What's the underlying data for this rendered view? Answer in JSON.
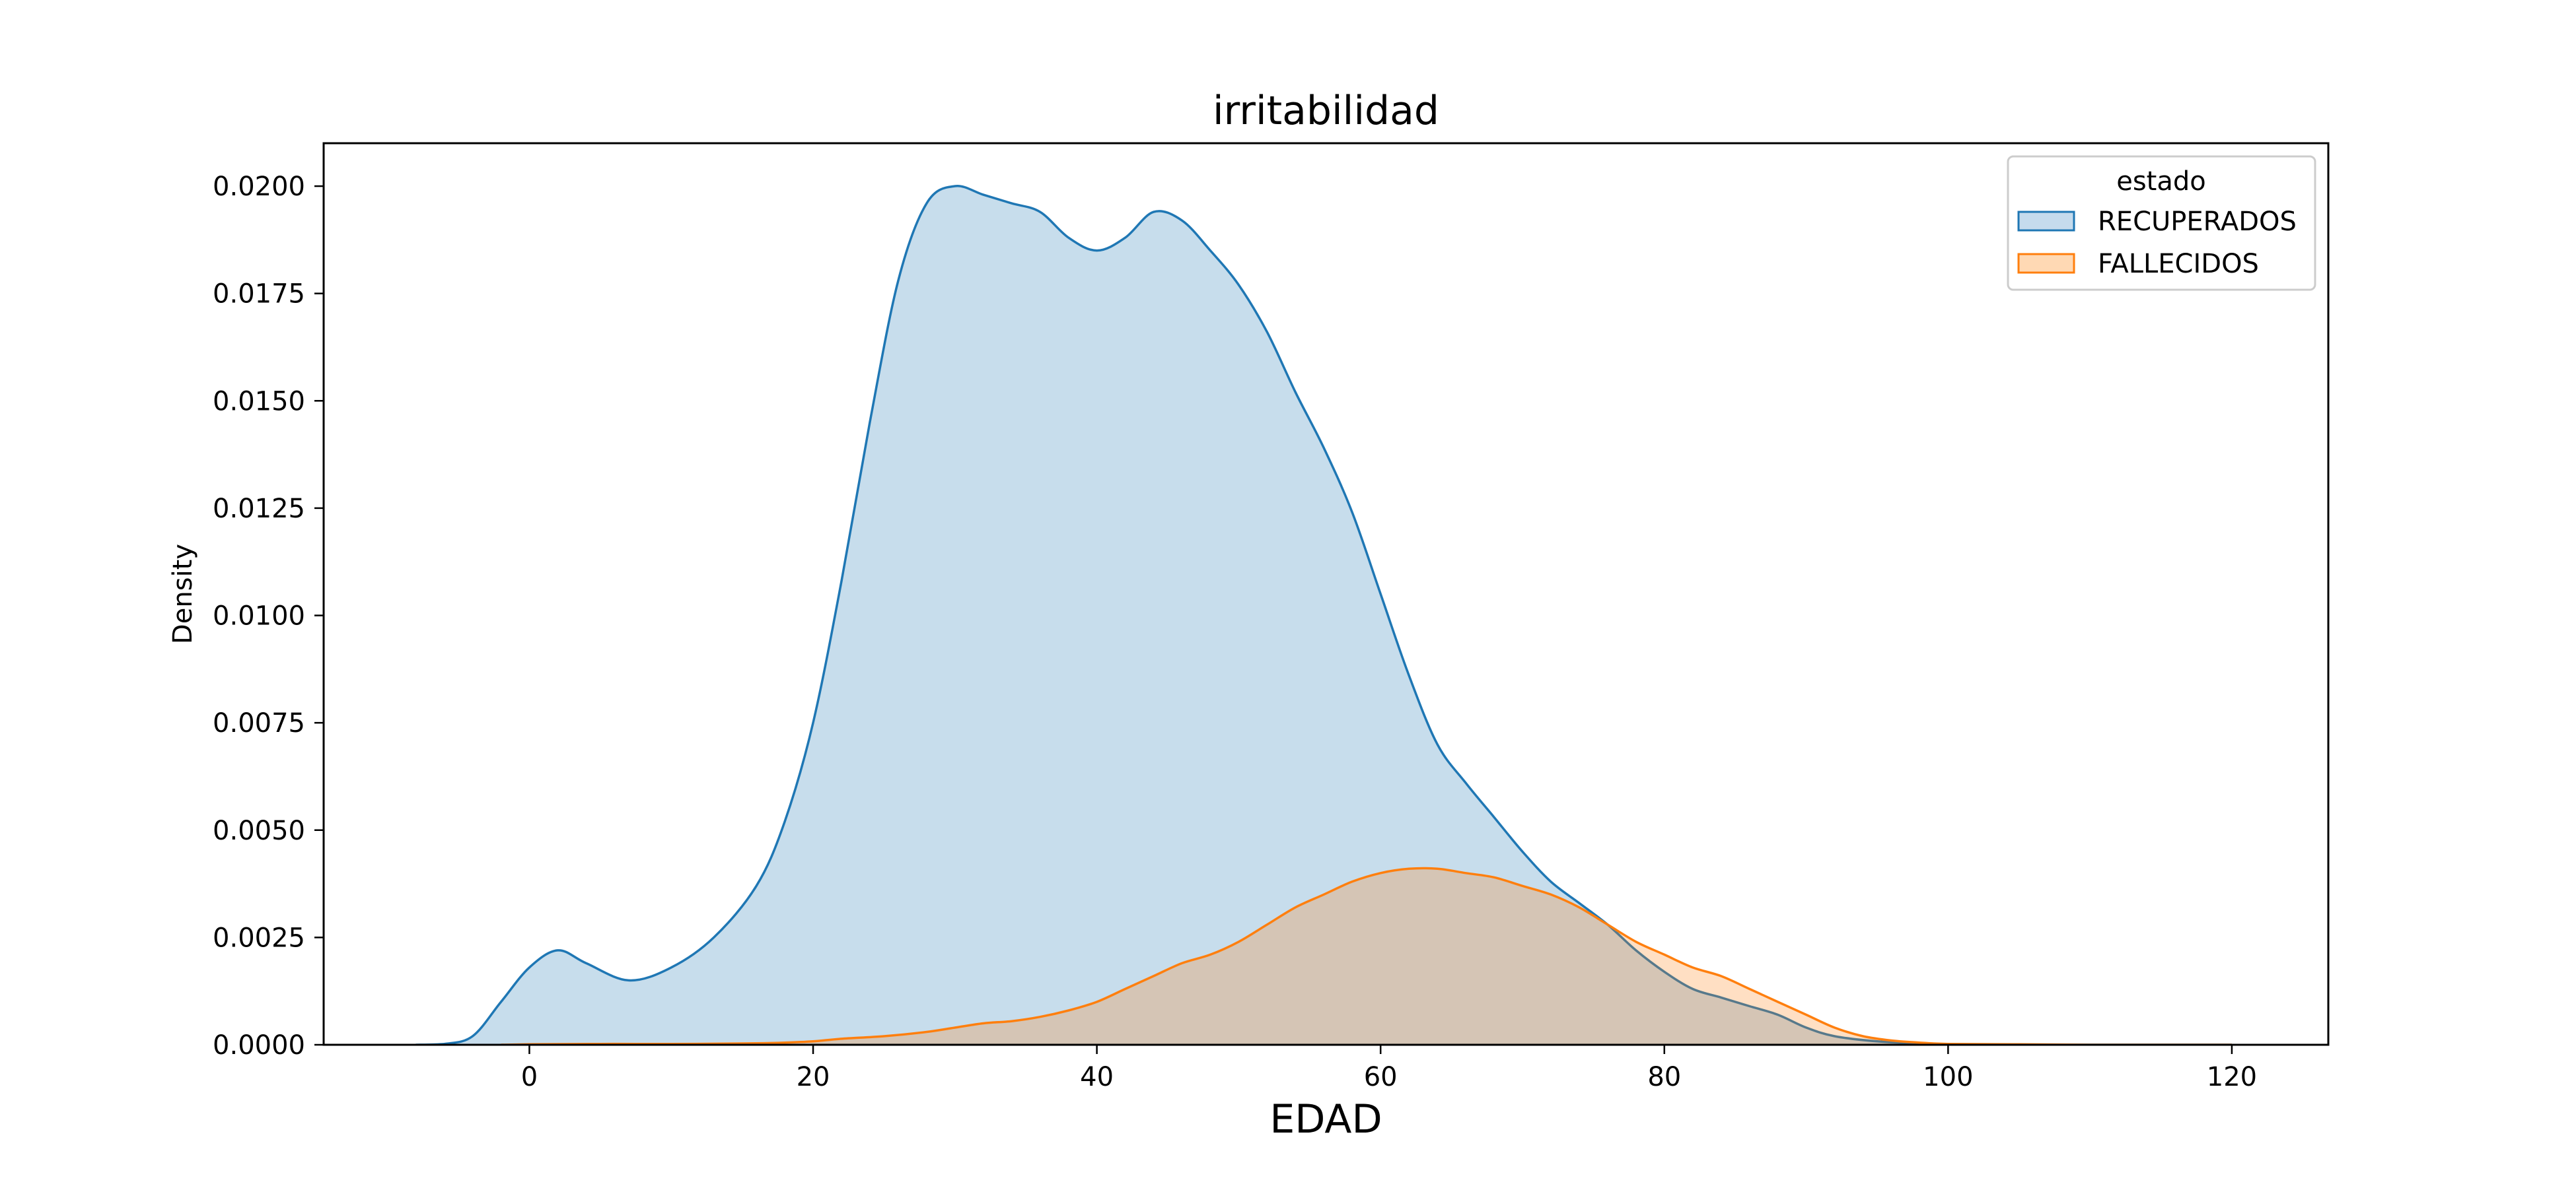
{
  "chart_data": {
    "type": "area",
    "title": "irritabilidad",
    "xlabel": "EDAD",
    "ylabel": "Density",
    "xlim": [
      -14.5,
      126.8
    ],
    "ylim": [
      0,
      0.021
    ],
    "xticks": [
      0,
      20,
      40,
      60,
      80,
      100,
      120
    ],
    "xtick_labels": [
      "0",
      "20",
      "40",
      "60",
      "80",
      "100",
      "120"
    ],
    "yticks": [
      0,
      0.0025,
      0.005,
      0.0075,
      0.01,
      0.0125,
      0.015,
      0.0175,
      0.02
    ],
    "ytick_labels": [
      "0.0000",
      "0.0025",
      "0.0050",
      "0.0075",
      "0.0100",
      "0.0125",
      "0.0150",
      "0.0175",
      "0.0200"
    ],
    "grid": false,
    "legend": {
      "title": "estado",
      "placement": "top-right",
      "entries": [
        "RECUPERADOS",
        "FALLECIDOS"
      ]
    },
    "series": [
      {
        "name": "RECUPERADOS",
        "color": "#1f77b4",
        "fill": "#c5dbed",
        "x": [
          -8,
          -6,
          -4,
          -2,
          0,
          2,
          4,
          7,
          10,
          13,
          16,
          18,
          20,
          22,
          24,
          26,
          28,
          30,
          32,
          34,
          36,
          38,
          40,
          42,
          44,
          46,
          48,
          50,
          52,
          54,
          56,
          58,
          60,
          62,
          64,
          66,
          68,
          70,
          72,
          74,
          76,
          78,
          80,
          82,
          84,
          86,
          88,
          90,
          92,
          95,
          98,
          100,
          105,
          110,
          115,
          120
        ],
        "y": [
          0.0,
          2e-05,
          0.0002,
          0.001,
          0.0018,
          0.0022,
          0.0019,
          0.0015,
          0.0018,
          0.0025,
          0.0037,
          0.0052,
          0.0075,
          0.0108,
          0.0145,
          0.0178,
          0.0196,
          0.02,
          0.0198,
          0.0196,
          0.0194,
          0.0188,
          0.0185,
          0.0188,
          0.0194,
          0.0192,
          0.0185,
          0.0177,
          0.0166,
          0.0152,
          0.0139,
          0.0124,
          0.0105,
          0.0086,
          0.007,
          0.0061,
          0.0053,
          0.0045,
          0.0038,
          0.0033,
          0.0028,
          0.0022,
          0.0017,
          0.0013,
          0.0011,
          0.0009,
          0.0007,
          0.0004,
          0.0002,
          8e-05,
          3e-05,
          1e-05,
          0.0,
          0.0,
          0.0,
          0.0
        ]
      },
      {
        "name": "FALLECIDOS",
        "color": "#ff7f0e",
        "fill": "#ffd9b4",
        "x": [
          -2,
          0,
          5,
          10,
          15,
          18,
          20,
          22,
          25,
          28,
          30,
          32,
          34,
          36,
          38,
          40,
          42,
          44,
          46,
          48,
          50,
          52,
          54,
          56,
          58,
          60,
          62,
          64,
          66,
          68,
          70,
          72,
          74,
          76,
          78,
          80,
          82,
          84,
          86,
          88,
          90,
          92,
          94,
          96,
          98,
          100,
          105,
          110,
          115,
          120
        ],
        "y": [
          0.0,
          1e-05,
          2e-05,
          2e-05,
          3e-05,
          5e-05,
          8e-05,
          0.00014,
          0.0002,
          0.0003,
          0.0004,
          0.0005,
          0.00055,
          0.00065,
          0.0008,
          0.001,
          0.0013,
          0.0016,
          0.0019,
          0.0021,
          0.0024,
          0.0028,
          0.0032,
          0.0035,
          0.0038,
          0.004,
          0.0041,
          0.0041,
          0.004,
          0.0039,
          0.0037,
          0.0035,
          0.0032,
          0.0028,
          0.0024,
          0.0021,
          0.0018,
          0.0016,
          0.0013,
          0.001,
          0.0007,
          0.0004,
          0.0002,
          0.0001,
          5e-05,
          2e-05,
          1e-05,
          0.0,
          0.0,
          0.0
        ]
      }
    ]
  }
}
